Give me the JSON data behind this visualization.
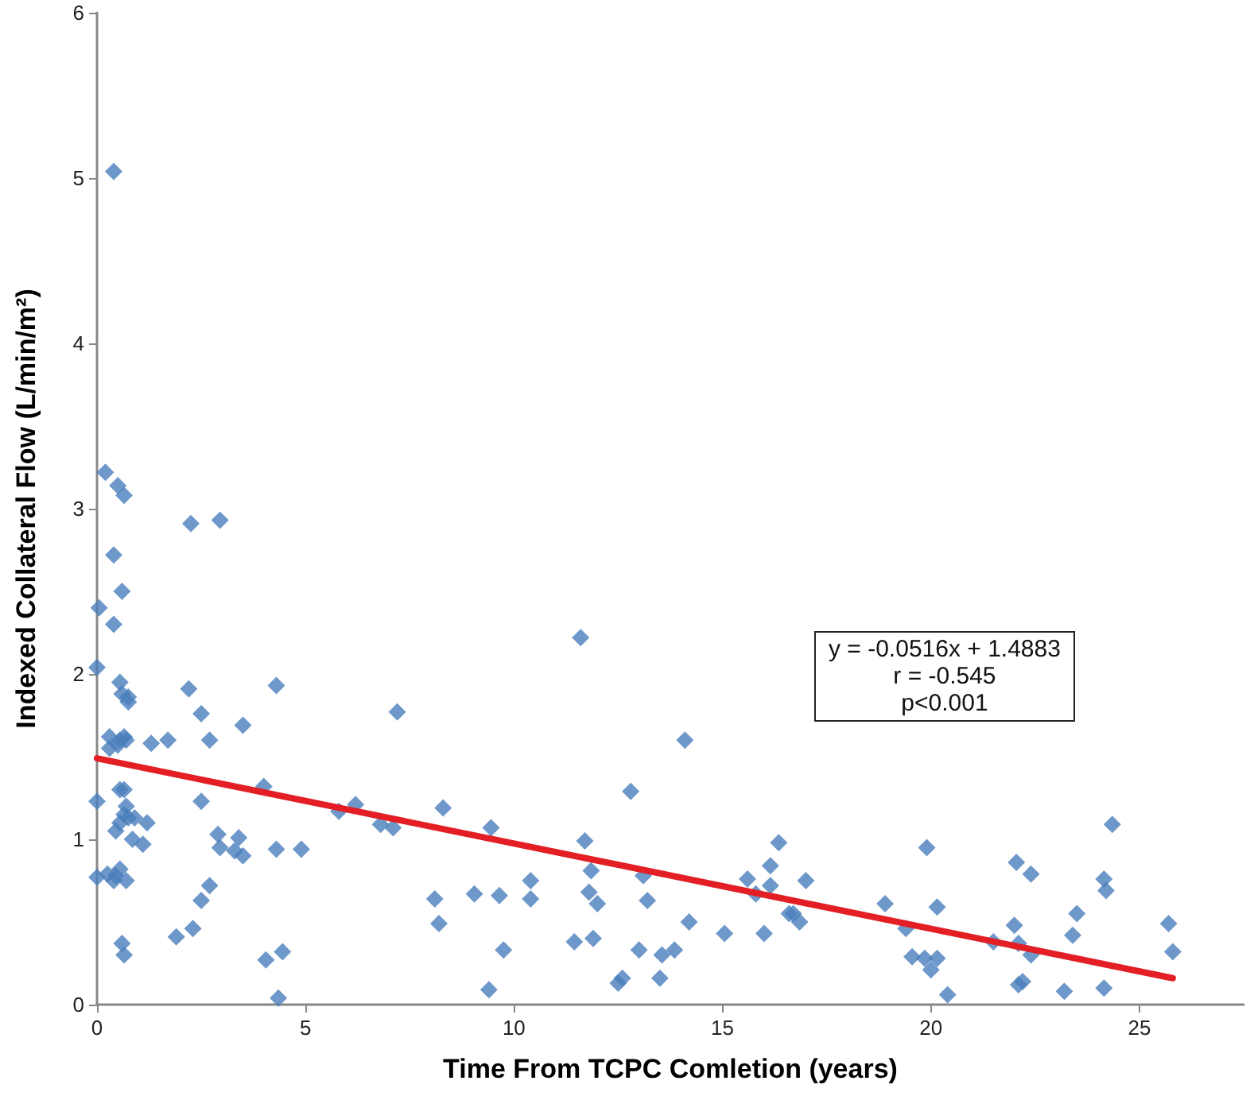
{
  "chart_data": {
    "type": "scatter",
    "xlabel": "Time From TCPC Comletion (years)",
    "ylabel": "Indexed Collateral Flow (L/min/m²)",
    "xlim": [
      0,
      27.5
    ],
    "xticks": [
      0,
      5,
      10,
      15,
      20,
      25
    ],
    "ylim": [
      0,
      6
    ],
    "yticks": [
      0,
      1,
      2,
      3,
      4,
      5,
      6
    ],
    "grid": false,
    "marker": "diamond",
    "annotations": [
      "y = -0.0516x + 1.4883",
      "r = -0.545",
      "p<0.001"
    ],
    "series": [
      {
        "color": "#4a7ebb",
        "x": [
          0.4,
          0.2,
          0.5,
          0.65,
          0.4,
          0.6,
          0.05,
          0.4,
          0.0,
          0.55,
          0.6,
          0.75,
          0.75,
          0.3,
          0.3,
          0.5,
          0.65,
          0.7,
          0.55,
          0.0,
          0.55,
          0.65,
          0.7,
          0.65,
          0.75,
          0.55,
          0.45,
          0.9,
          1.2,
          0.85,
          1.1,
          0.0,
          0.25,
          0.45,
          0.55,
          0.4,
          0.7,
          0.6,
          0.65,
          1.3,
          1.7,
          2.2,
          2.25,
          2.95,
          2.5,
          2.7,
          3.5,
          2.5,
          4.3,
          4.0,
          2.9,
          2.95,
          3.4,
          3.3,
          3.5,
          4.3,
          4.9,
          2.7,
          2.5,
          2.3,
          1.9,
          4.05,
          4.45,
          4.35,
          5.8,
          6.2,
          6.8,
          7.1,
          7.2,
          8.3,
          8.1,
          8.2,
          9.05,
          9.45,
          9.65,
          9.75,
          9.4,
          10.4,
          10.4,
          11.6,
          11.7,
          11.85,
          11.8,
          12.0,
          11.45,
          11.9,
          12.5,
          12.6,
          12.8,
          13.1,
          13.2,
          13.0,
          13.5,
          13.55,
          13.85,
          14.1,
          14.2,
          15.05,
          15.6,
          15.8,
          16.0,
          16.15,
          16.15,
          16.35,
          16.6,
          17.0,
          16.85,
          16.7,
          18.9,
          19.4,
          19.9,
          19.55,
          19.85,
          20.0,
          20.15,
          20.15,
          20.4,
          21.5,
          22.0,
          22.05,
          22.4,
          22.1,
          22.4,
          22.1,
          22.2,
          23.2,
          23.4,
          23.5,
          24.15,
          24.2,
          24.35,
          24.15,
          25.7,
          25.8
        ],
        "values": [
          5.04,
          3.22,
          3.14,
          3.08,
          2.72,
          2.5,
          2.4,
          2.3,
          2.04,
          1.95,
          1.88,
          1.86,
          1.83,
          1.62,
          1.55,
          1.57,
          1.62,
          1.6,
          1.6,
          1.23,
          1.3,
          1.3,
          1.2,
          1.15,
          1.13,
          1.1,
          1.05,
          1.13,
          1.1,
          1.0,
          0.97,
          0.77,
          0.79,
          0.78,
          0.82,
          0.75,
          0.75,
          0.37,
          0.3,
          1.58,
          1.6,
          1.91,
          2.91,
          2.93,
          1.76,
          1.6,
          1.69,
          1.23,
          1.93,
          1.32,
          1.03,
          0.95,
          1.01,
          0.93,
          0.9,
          0.94,
          0.94,
          0.72,
          0.63,
          0.46,
          0.41,
          0.27,
          0.32,
          0.04,
          1.17,
          1.21,
          1.09,
          1.07,
          1.77,
          1.19,
          0.64,
          0.49,
          0.67,
          1.07,
          0.66,
          0.33,
          0.09,
          0.75,
          0.64,
          2.22,
          0.99,
          0.81,
          0.68,
          0.61,
          0.38,
          0.4,
          0.13,
          0.16,
          1.29,
          0.78,
          0.63,
          0.33,
          0.16,
          0.3,
          0.33,
          1.6,
          0.5,
          0.43,
          0.76,
          0.67,
          0.43,
          0.84,
          0.72,
          0.98,
          0.55,
          0.75,
          0.5,
          0.55,
          0.61,
          0.46,
          0.95,
          0.29,
          0.28,
          0.21,
          0.28,
          0.59,
          0.06,
          0.38,
          0.48,
          0.86,
          0.79,
          0.37,
          0.3,
          0.12,
          0.14,
          0.08,
          0.42,
          0.55,
          0.76,
          0.69,
          1.09,
          0.1,
          0.49,
          0.32
        ]
      },
      {
        "type": "line",
        "color": "#e31e24",
        "line_style": "solid",
        "marker": "none",
        "x": [
          0,
          25.8
        ],
        "values": [
          1.49,
          0.16
        ]
      }
    ]
  }
}
